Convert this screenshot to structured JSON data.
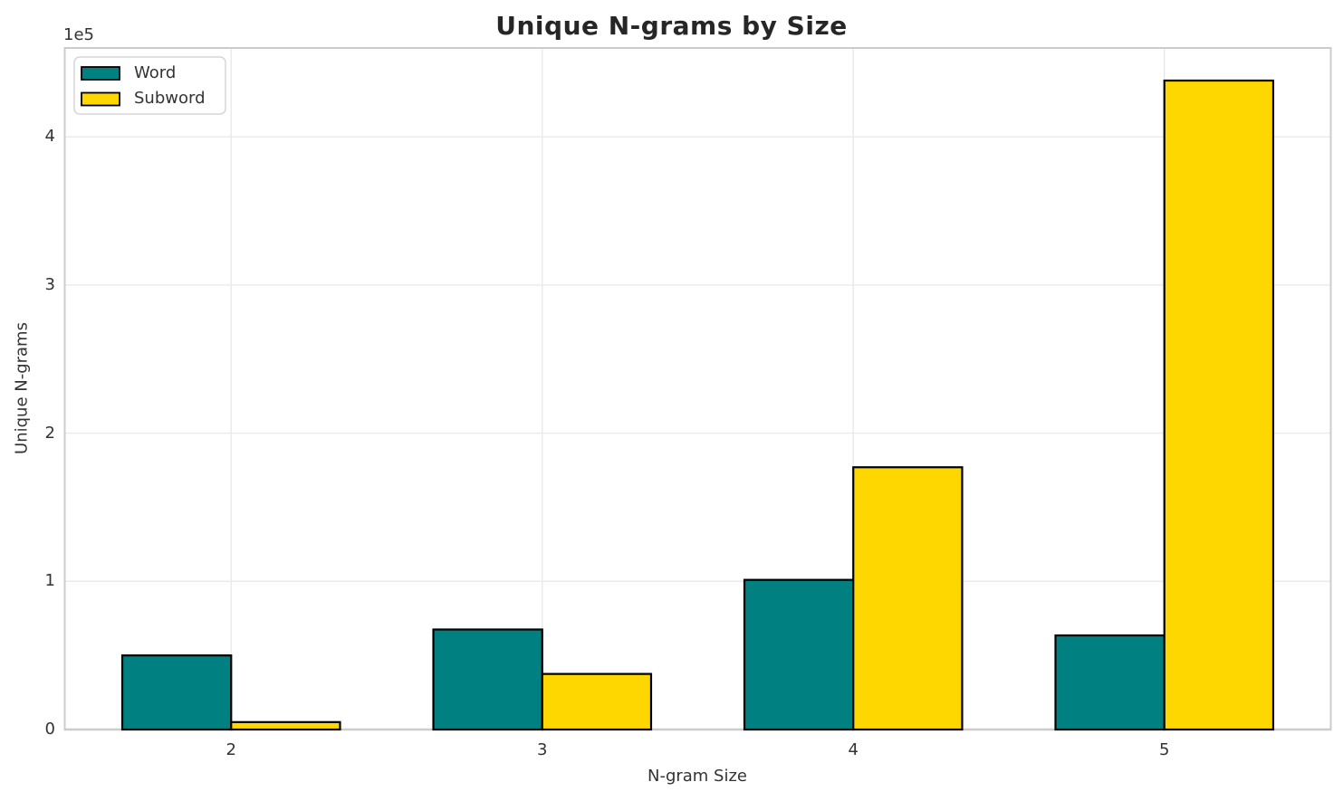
{
  "title": "Unique N-grams by Size",
  "axes": {
    "xlabel": "N-gram Size",
    "ylabel": "Unique N-grams",
    "offset_label": "1e5",
    "x_tick_labels": [
      "2",
      "3",
      "4",
      "5"
    ],
    "y_tick_labels": [
      "0",
      "1",
      "2",
      "3",
      "4"
    ],
    "y_tick_values": [
      0,
      100000,
      200000,
      300000,
      400000
    ]
  },
  "legend": {
    "position": "upper left",
    "items": [
      {
        "label": "Word",
        "color": "#008080"
      },
      {
        "label": "Subword",
        "color": "#ffd700"
      }
    ]
  },
  "colors": {
    "word": "#008080",
    "subword": "#ffd700",
    "bar_edge": "#000000",
    "grid": "#e9e9e9",
    "spine": "#cccccc",
    "text": "#333333",
    "title_text": "#262626",
    "background": "#ffffff",
    "legend_border": "#d5d5d5"
  },
  "chart_data": {
    "type": "bar",
    "title": "Unique N-grams by Size",
    "xlabel": "N-gram Size",
    "ylabel": "Unique N-grams",
    "y_multiplier_label": "1e5",
    "categories": [
      2,
      3,
      4,
      5
    ],
    "series": [
      {
        "name": "Word",
        "color": "#008080",
        "values": [
          50000,
          67500,
          101000,
          63500
        ]
      },
      {
        "name": "Subword",
        "color": "#ffd700",
        "values": [
          5000,
          37500,
          177000,
          438000
        ]
      }
    ],
    "bar_width": 0.35,
    "ylim": [
      0,
      460000
    ],
    "grid": true,
    "legend_position": "upper left"
  }
}
